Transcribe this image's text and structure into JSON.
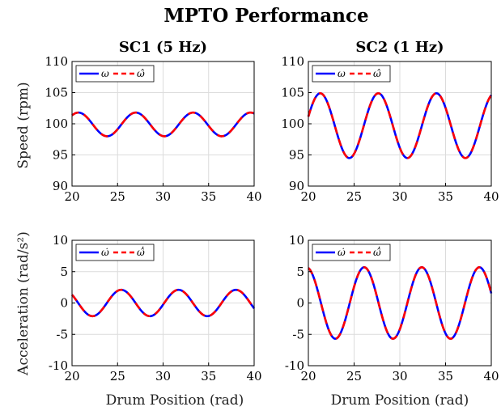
{
  "figure": {
    "title": "MPTO Performance",
    "xlabel": "Drum Position (rad)",
    "ylabel_top": "Speed (rpm)",
    "ylabel_bottom": "Acceleration (rad/s²)"
  },
  "colors": {
    "measured": "#0000ff",
    "estimated": "#ff0000"
  },
  "chart_data": [
    {
      "type": "line",
      "title": "SC1 (5 Hz)",
      "xlabel": "",
      "ylabel": "Speed (rpm)",
      "xlim": [
        20,
        40
      ],
      "ylim": [
        90,
        110
      ],
      "xticks": [
        20,
        25,
        30,
        35,
        40
      ],
      "yticks": [
        90,
        95,
        100,
        105,
        110
      ],
      "grid": true,
      "legend_position": "top-left",
      "model": {
        "kind": "sinusoid",
        "offset": 99.9,
        "amplitude": 1.9,
        "period": 6.3,
        "peak_at": 27.0
      },
      "series": [
        {
          "name": "ω",
          "style": "solid"
        },
        {
          "name": "ω̂",
          "style": "dashed"
        }
      ]
    },
    {
      "type": "line",
      "title": "SC2 (1 Hz)",
      "xlabel": "",
      "ylabel": "",
      "xlim": [
        20,
        40
      ],
      "ylim": [
        90,
        110
      ],
      "xticks": [
        20,
        25,
        30,
        35,
        40
      ],
      "yticks": [
        90,
        95,
        100,
        105,
        110
      ],
      "grid": true,
      "legend_position": "top-left",
      "model": {
        "kind": "sinusoid",
        "offset": 99.7,
        "amplitude": 5.2,
        "period": 6.35,
        "peak_at": 21.3
      },
      "series": [
        {
          "name": "ω",
          "style": "solid"
        },
        {
          "name": "ω̂",
          "style": "dashed"
        }
      ]
    },
    {
      "type": "line",
      "title": "",
      "xlabel": "Drum Position (rad)",
      "ylabel": "Acceleration (rad/s²)",
      "xlim": [
        20,
        40
      ],
      "ylim": [
        -10,
        10
      ],
      "xticks": [
        20,
        25,
        30,
        35,
        40
      ],
      "yticks": [
        -10,
        -5,
        0,
        5,
        10
      ],
      "grid": true,
      "legend_position": "top-left",
      "model": {
        "kind": "sinusoid",
        "offset": 0,
        "amplitude": 2.1,
        "period": 6.3,
        "peak_at": 25.4
      },
      "series": [
        {
          "name": "ω̇",
          "style": "solid"
        },
        {
          "name": "ω̂̇",
          "style": "dashed"
        }
      ]
    },
    {
      "type": "line",
      "title": "",
      "xlabel": "Drum Position (rad)",
      "ylabel": "",
      "xlim": [
        20,
        40
      ],
      "ylim": [
        -10,
        10
      ],
      "xticks": [
        20,
        25,
        30,
        35,
        40
      ],
      "yticks": [
        -10,
        -5,
        0,
        5,
        10
      ],
      "grid": true,
      "legend_position": "top-left",
      "model": {
        "kind": "sinusoid",
        "offset": 0,
        "amplitude": 5.7,
        "period": 6.3,
        "peak_at": 26.1
      },
      "series": [
        {
          "name": "ω̇",
          "style": "solid"
        },
        {
          "name": "ω̂̇",
          "style": "dashed"
        }
      ]
    }
  ]
}
